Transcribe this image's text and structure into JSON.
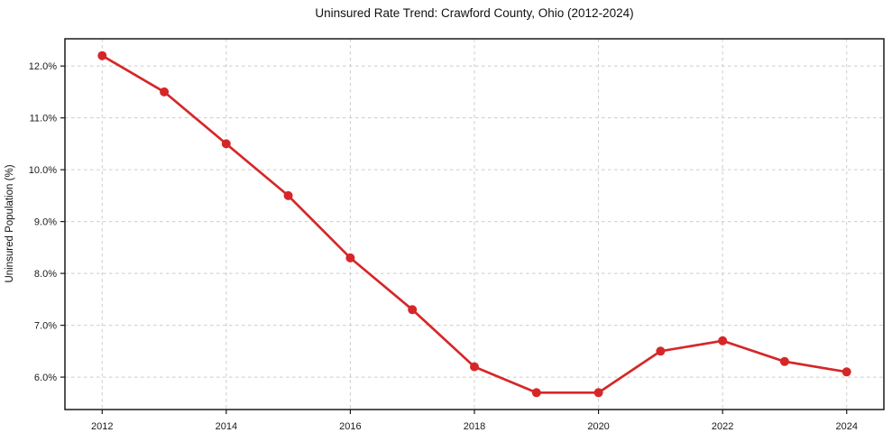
{
  "chart_data": {
    "type": "line",
    "title": "Uninsured Rate Trend: Crawford County, Ohio (2012-2024)",
    "xlabel": "",
    "ylabel": "Uninsured Population (%)",
    "x": [
      2012,
      2013,
      2014,
      2015,
      2016,
      2017,
      2018,
      2019,
      2020,
      2021,
      2022,
      2023,
      2024
    ],
    "values": [
      12.2,
      11.5,
      10.5,
      9.5,
      8.3,
      7.3,
      6.2,
      5.7,
      5.7,
      6.5,
      6.7,
      6.3,
      6.1
    ],
    "xlim": [
      2011.4,
      2024.6
    ],
    "ylim": [
      5.375,
      12.525
    ],
    "xticks": [
      2012,
      2014,
      2016,
      2018,
      2020,
      2022,
      2024
    ],
    "xtick_labels": [
      "2012",
      "2014",
      "2016",
      "2018",
      "2020",
      "2022",
      "2024"
    ],
    "yticks": [
      6,
      7,
      8,
      9,
      10,
      11,
      12
    ],
    "ytick_labels": [
      "6.0%",
      "7.0%",
      "8.0%",
      "9.0%",
      "10.0%",
      "11.0%",
      "12.0%"
    ],
    "grid": {
      "show": true,
      "style": "dashed",
      "color": "#cccccc"
    },
    "legend": "none",
    "line_color": "#d62728",
    "marker": "circle",
    "axis_color": "#1a1a1a"
  }
}
